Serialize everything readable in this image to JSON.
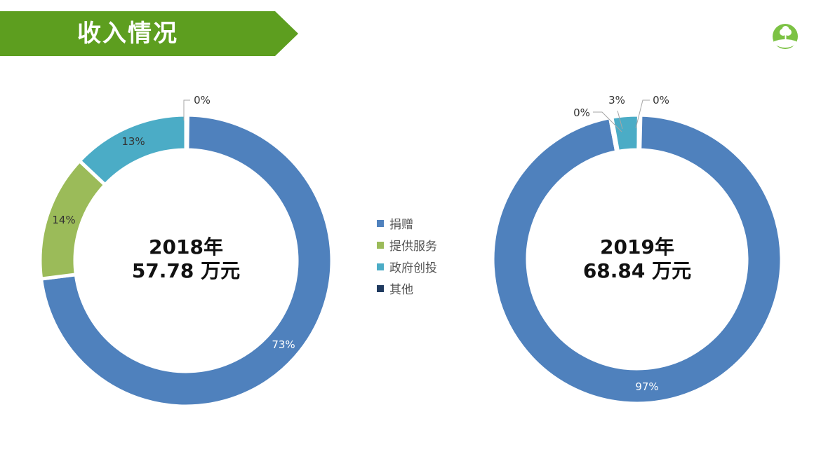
{
  "header": {
    "title": "收入情况",
    "accent": "#5d9e1f"
  },
  "logo": {
    "icon": "clover-tree-logo",
    "color": "#7cc244"
  },
  "chart_data": [
    {
      "type": "pie",
      "variant": "donut",
      "center_label": [
        "2018年",
        "57.78 万元"
      ],
      "categories": [
        "捐赠",
        "提供服务",
        "政府创投",
        "其他"
      ],
      "values": [
        73,
        14,
        13,
        0
      ],
      "data_labels": [
        "73%",
        "14%",
        "13%",
        "0%"
      ],
      "colors": [
        "#4f81bd",
        "#9bbb59",
        "#4bacc6",
        "#1f3a5f"
      ],
      "legend": "center-between"
    },
    {
      "type": "pie",
      "variant": "donut",
      "center_label": [
        "2019年",
        "68.84 万元"
      ],
      "categories": [
        "捐赠",
        "提供服务",
        "政府创投",
        "其他"
      ],
      "values": [
        97,
        0,
        3,
        0
      ],
      "data_labels": [
        "97%",
        "0%",
        "3%",
        "0%"
      ],
      "colors": [
        "#4f81bd",
        "#9bbb59",
        "#4bacc6",
        "#1f3a5f"
      ],
      "legend": "center-between"
    }
  ],
  "legend": {
    "items": [
      {
        "label": "捐赠",
        "color": "#4f81bd"
      },
      {
        "label": "提供服务",
        "color": "#9bbb59"
      },
      {
        "label": "政府创投",
        "color": "#4bacc6"
      },
      {
        "label": "其他",
        "color": "#1f3a5f"
      }
    ]
  }
}
